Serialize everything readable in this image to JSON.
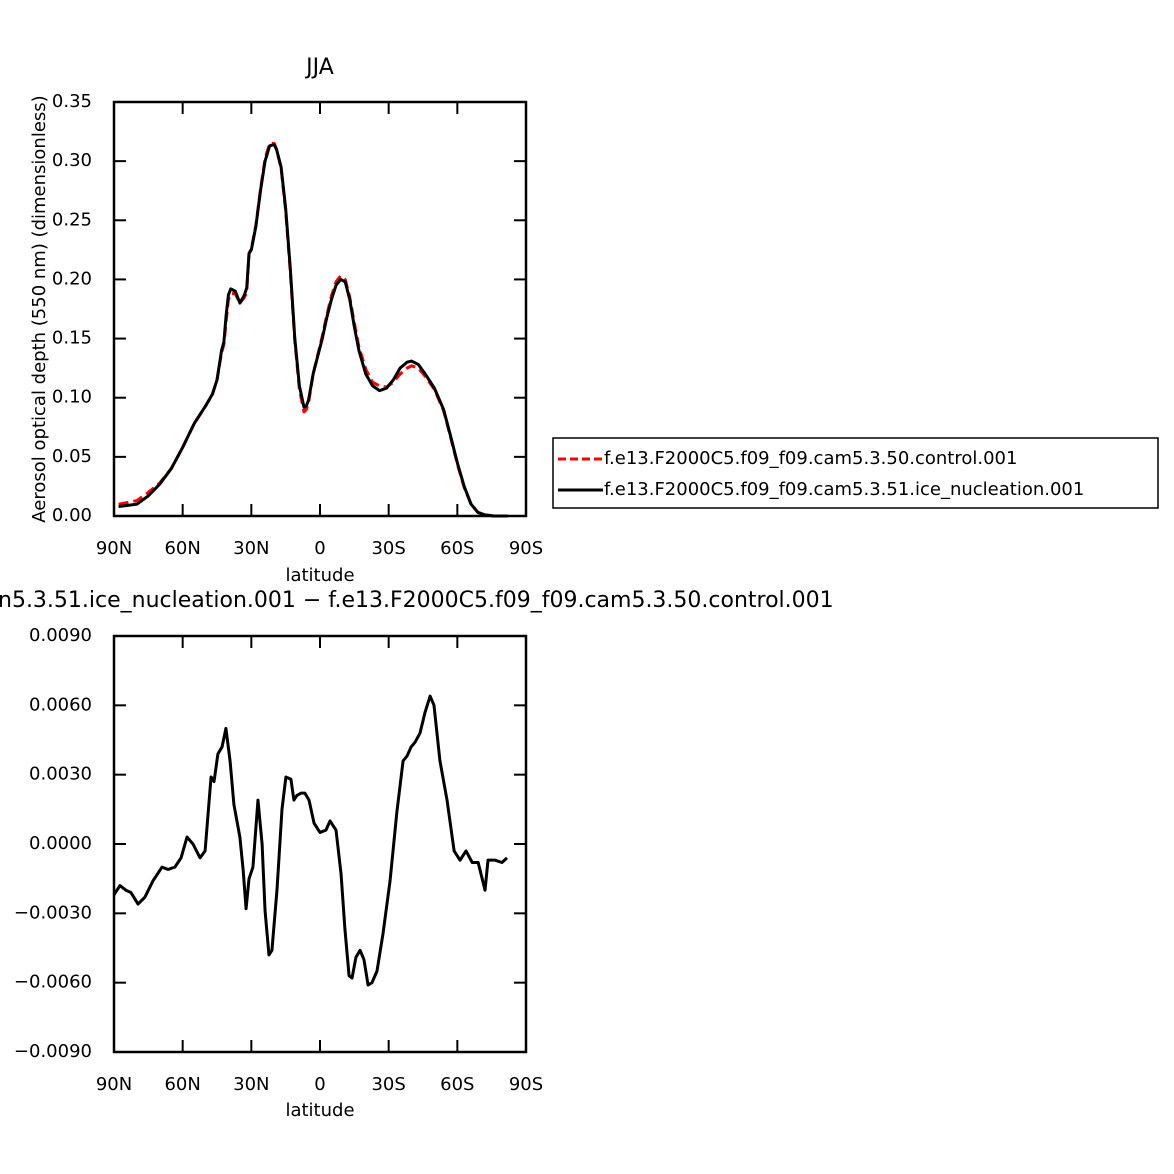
{
  "chart_data": [
    {
      "type": "line",
      "title": "JJA",
      "ylabel": "Aerosol optical depth (550 nm) (dimensionless)",
      "xlabel": "latitude",
      "xlim": [
        90,
        -90
      ],
      "ylim": [
        0,
        0.35
      ],
      "xticks": [
        {
          "value": 90,
          "label": "90N"
        },
        {
          "value": 60,
          "label": "60N"
        },
        {
          "value": 30,
          "label": "30N"
        },
        0,
        {
          "value": -30,
          "label": "30S"
        },
        {
          "value": -60,
          "label": "60S"
        },
        {
          "value": -90,
          "label": "90S"
        }
      ],
      "yticks": [
        {
          "value": 0,
          "label": "0.00"
        },
        0.05,
        {
          "value": 0.1,
          "label": "0.10"
        },
        0.15,
        {
          "value": 0.2,
          "label": "0.20"
        },
        0.25,
        {
          "value": 0.3,
          "label": "0.30"
        },
        0.35
      ],
      "legend": "right",
      "x": [
        88,
        80,
        75,
        70,
        65,
        60,
        55,
        50,
        47,
        45,
        43,
        42,
        41,
        40,
        39,
        37,
        35,
        33,
        32,
        31,
        30,
        28,
        26,
        24,
        22,
        20,
        19,
        17,
        15,
        13,
        11,
        9,
        7,
        6,
        5,
        3,
        1,
        -1,
        -3,
        -5,
        -7,
        -9,
        -11,
        -13,
        -15,
        -17,
        -20,
        -23,
        -26,
        -29,
        -32,
        -35,
        -38,
        -40,
        -43,
        -46,
        -50,
        -54,
        -57,
        -60,
        -63,
        -66,
        -69,
        -72,
        -76,
        -82
      ],
      "series": [
        {
          "name": "f.e13.F2000C5.f09_f09.cam5.3.50.control.001",
          "color": "#ff0000",
          "dashed": true,
          "values": [
            0.01,
            0.013,
            0.02,
            0.028,
            0.04,
            0.058,
            0.078,
            0.093,
            0.103,
            0.115,
            0.138,
            0.145,
            0.165,
            0.183,
            0.188,
            0.188,
            0.18,
            0.185,
            0.19,
            0.222,
            0.226,
            0.246,
            0.276,
            0.302,
            0.315,
            0.315,
            0.31,
            0.294,
            0.258,
            0.207,
            0.148,
            0.107,
            0.088,
            0.09,
            0.096,
            0.12,
            0.136,
            0.152,
            0.17,
            0.186,
            0.198,
            0.203,
            0.2,
            0.185,
            0.163,
            0.143,
            0.124,
            0.113,
            0.11,
            0.109,
            0.113,
            0.12,
            0.125,
            0.127,
            0.125,
            0.118,
            0.107,
            0.089,
            0.067,
            0.044,
            0.024,
            0.01,
            0.003,
            0.001,
            0,
            0
          ]
        },
        {
          "name": "f.e13.F2000C5.f09_f09.cam5.3.51.ice_nucleation.001",
          "color": "#000000",
          "dashed": false,
          "values": [
            0.008,
            0.01,
            0.017,
            0.027,
            0.04,
            0.058,
            0.078,
            0.093,
            0.103,
            0.115,
            0.14,
            0.147,
            0.17,
            0.187,
            0.192,
            0.19,
            0.18,
            0.187,
            0.193,
            0.222,
            0.225,
            0.245,
            0.275,
            0.3,
            0.313,
            0.314,
            0.31,
            0.295,
            0.26,
            0.21,
            0.15,
            0.11,
            0.092,
            0.093,
            0.098,
            0.12,
            0.135,
            0.15,
            0.168,
            0.183,
            0.195,
            0.2,
            0.198,
            0.183,
            0.16,
            0.14,
            0.12,
            0.11,
            0.106,
            0.108,
            0.115,
            0.125,
            0.13,
            0.131,
            0.128,
            0.12,
            0.108,
            0.09,
            0.068,
            0.045,
            0.025,
            0.01,
            0.003,
            0.001,
            0,
            0
          ]
        }
      ]
    },
    {
      "type": "line",
      "title": "n5.3.51.ice_nucleation.001 − f.e13.F2000C5.f09_f09.cam5.3.50.control.001",
      "xlabel": "latitude",
      "xlim": [
        90,
        -90
      ],
      "ylim": [
        -0.009,
        0.009
      ],
      "xticks": [
        {
          "value": 90,
          "label": "90N"
        },
        {
          "value": 60,
          "label": "60N"
        },
        {
          "value": 30,
          "label": "30N"
        },
        0,
        {
          "value": -30,
          "label": "30S"
        },
        {
          "value": -60,
          "label": "60S"
        },
        {
          "value": -90,
          "label": "90S"
        }
      ],
      "yticks": [
        {
          "value": -0.009,
          "label": "−0.0090"
        },
        {
          "value": -0.006,
          "label": "−0.0060"
        },
        {
          "value": -0.003,
          "label": "−0.0030"
        },
        {
          "value": 0,
          "label": "0.0000"
        },
        {
          "value": 0.003,
          "label": "0.0030"
        },
        {
          "value": 0.006,
          "label": "0.0060"
        },
        {
          "value": 0.009,
          "label": "0.0090"
        }
      ],
      "x": [
        90,
        87.4,
        84.8,
        82.6,
        79.5,
        76.5,
        73,
        69,
        66.4,
        63.4,
        60.7,
        58.1,
        55.5,
        52.4,
        50.2,
        47.6,
        46.3,
        44.6,
        42.8,
        41.1,
        39.3,
        37.6,
        35,
        33.6,
        32.3,
        31,
        29.3,
        27.1,
        25.3,
        24,
        22.3,
        21,
        18.8,
        16.6,
        14.9,
        12.7,
        11.4,
        10.1,
        8.3,
        6.6,
        4.8,
        2.6,
        0,
        -2.6,
        -4.4,
        -7,
        -9.2,
        -10.9,
        -12.7,
        -14,
        -15.7,
        -17.5,
        -19.2,
        -21,
        -22.7,
        -24.9,
        -27.5,
        -30.6,
        -33.6,
        -36.3,
        -38,
        -39.8,
        -41.5,
        -43.7,
        -45.9,
        -48.1,
        -49.8,
        -52.4,
        -55.5,
        -58.6,
        -61.2,
        -63.8,
        -66.5,
        -69.1,
        -72.1,
        -73.4,
        -76.5,
        -79.5,
        -81.7
      ],
      "series": [
        {
          "color": "#000000",
          "dashed": false,
          "values": [
            -0.0022,
            -0.0018,
            -0.002,
            -0.0021,
            -0.0026,
            -0.0023,
            -0.0016,
            -0.001,
            -0.0011,
            -0.001,
            -0.0006,
            0.0003,
            0,
            -0.0006,
            -0.0003,
            0.0029,
            0.0027,
            0.0039,
            0.0042,
            0.005,
            0.0036,
            0.0017,
            0.0003,
            -0.0011,
            -0.0028,
            -0.0015,
            -0.001,
            0.0019,
            0,
            -0.0029,
            -0.0048,
            -0.0046,
            -0.002,
            0.0015,
            0.0029,
            0.0028,
            0.0019,
            0.0021,
            0.0022,
            0.0022,
            0.0019,
            0.0009,
            0.0005,
            0.0006,
            0.001,
            0.0006,
            -0.0013,
            -0.0037,
            -0.0057,
            -0.0058,
            -0.0049,
            -0.0046,
            -0.005,
            -0.0061,
            -0.006,
            -0.0055,
            -0.0039,
            -0.0016,
            0.0014,
            0.0036,
            0.0038,
            0.0042,
            0.0044,
            0.0048,
            0.0057,
            0.0064,
            0.006,
            0.0036,
            0.0019,
            -0.0003,
            -0.0007,
            -0.0003,
            -0.0008,
            -0.0008,
            -0.002,
            -0.0007,
            -0.0007,
            -0.0008,
            -0.0006
          ]
        }
      ]
    }
  ]
}
